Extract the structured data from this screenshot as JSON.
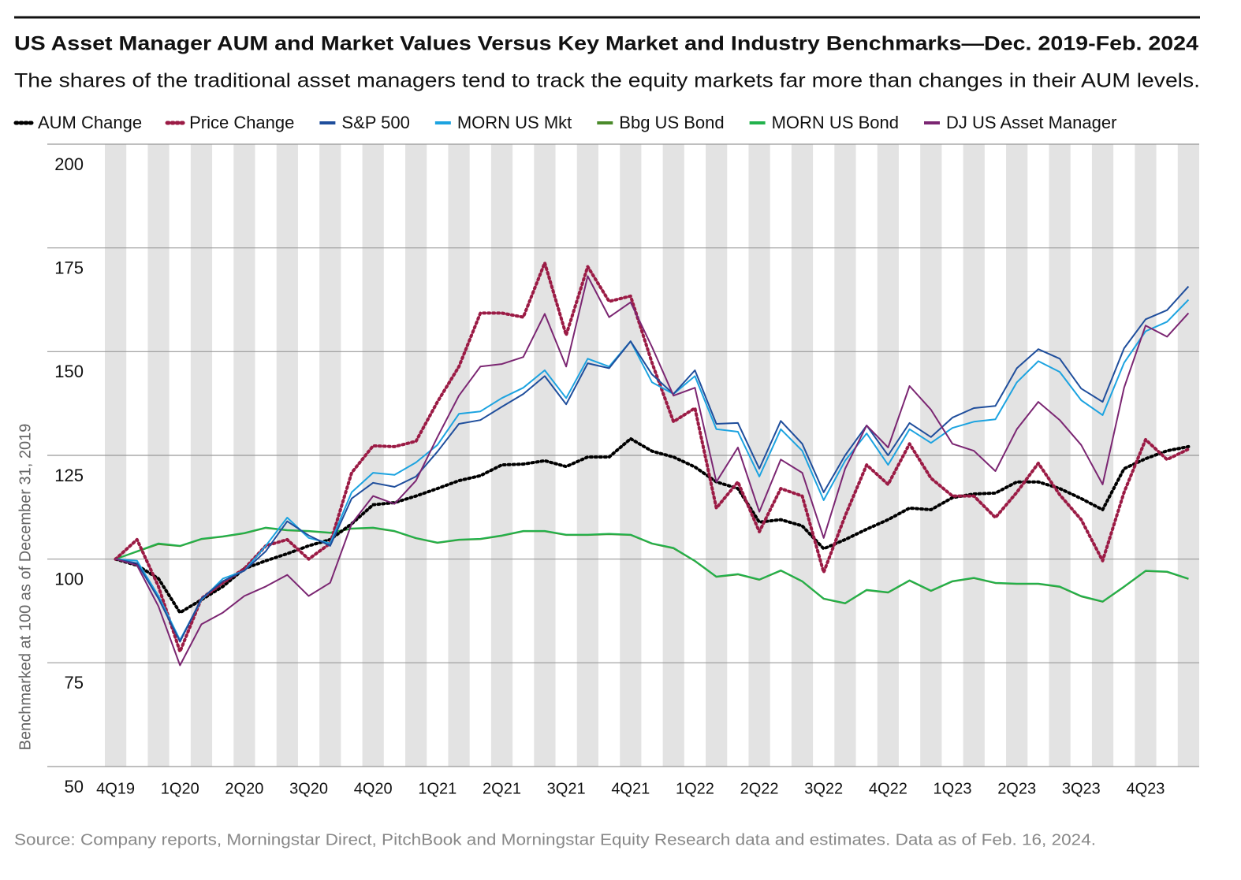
{
  "chart_data": {
    "type": "line",
    "title": "US Asset Manager AUM and Market Values Versus Key Market and Industry Benchmarks—Dec. 2019-Feb. 2024",
    "subtitle": "The shares of the traditional asset managers tend to track the equity markets far more than changes in their AUM levels.",
    "y_label": "Benchmarked at 100 as of December 31, 2019",
    "source": "Source: Company reports, Morningstar Direct, PitchBook and Morningstar Equity Research data and estimates. Data as of Feb. 16, 2024.",
    "categories": [
      "4Q19",
      null,
      null,
      "1Q20",
      null,
      null,
      "2Q20",
      null,
      null,
      "3Q20",
      null,
      null,
      "4Q20",
      null,
      null,
      "1Q21",
      null,
      null,
      "2Q21",
      null,
      null,
      "3Q21",
      null,
      null,
      "4Q21",
      null,
      null,
      "1Q22",
      null,
      null,
      "2Q22",
      null,
      null,
      "3Q22",
      null,
      null,
      "4Q22",
      null,
      null,
      "1Q23",
      null,
      null,
      "2Q23",
      null,
      null,
      "3Q23",
      null,
      null,
      "4Q23",
      null,
      null
    ],
    "ylim": [
      50,
      200
    ],
    "yticks": [
      50,
      75,
      100,
      125,
      150,
      175,
      200
    ],
    "grid": true,
    "stripes": true,
    "series": [
      {
        "name": "AUM Change",
        "color": "#000000",
        "line_style": "dotted",
        "values": [
          100,
          98.5,
          95.3,
          87.1,
          90.2,
          93.4,
          97.7,
          99.6,
          101.3,
          103.2,
          104.7,
          108.5,
          113.1,
          113.6,
          115.2,
          117,
          118.9,
          120.1,
          122.7,
          122.9,
          123.7,
          122.3,
          124.6,
          124.6,
          129,
          126,
          124.6,
          122.2,
          118.6,
          117,
          108.9,
          109.5,
          108,
          102.5,
          104.7,
          107.2,
          109.5,
          112.3,
          111.9,
          114.8,
          115.7,
          115.9,
          118.6,
          118.6,
          117,
          114.6,
          111.9,
          121.8,
          124.2,
          126.1,
          127.1
        ]
      },
      {
        "name": "Price Change",
        "color": "#9b1b45",
        "line_style": "dotted",
        "values": [
          100,
          104.7,
          93.4,
          77.7,
          90.5,
          94.3,
          97.7,
          103.2,
          104.7,
          100,
          103.8,
          120.8,
          127.3,
          127.1,
          128.4,
          137.9,
          146.4,
          159.3,
          159.3,
          158.3,
          171.4,
          154,
          170.5,
          162.1,
          163.4,
          147.3,
          133.1,
          136.4,
          112.3,
          118.6,
          106.6,
          117,
          115.2,
          96.8,
          110.4,
          122.7,
          118,
          127.8,
          119.5,
          115.2,
          115.2,
          110,
          116.1,
          123.1,
          115.5,
          109.5,
          99.6,
          116.1,
          128.8,
          124,
          126.5
        ]
      },
      {
        "name": "S&P 500",
        "color": "#1f4e9c",
        "line_style": "solid",
        "values": [
          100,
          99,
          90.5,
          80.1,
          90.5,
          94.7,
          97.2,
          101.9,
          109.1,
          105.7,
          103.2,
          114.6,
          118.4,
          117.4,
          119.9,
          125.9,
          132.6,
          133.5,
          136.7,
          139.8,
          144.1,
          137.3,
          147.2,
          146,
          152.5,
          144.5,
          139.8,
          145.5,
          132.6,
          132.8,
          121.8,
          133.3,
          127.8,
          116.1,
          125,
          132.2,
          125,
          132.8,
          129.4,
          134.1,
          136.4,
          136.9,
          146,
          150.6,
          148.3,
          141.1,
          137.9,
          150.8,
          157.8,
          160,
          165.7
        ]
      },
      {
        "name": "MORN US Mkt",
        "color": "#1ca3e0",
        "line_style": "solid",
        "values": [
          100,
          99.6,
          91.1,
          80.5,
          90.2,
          95.3,
          97.2,
          103.2,
          110,
          105.1,
          103.8,
          116.1,
          120.8,
          120.3,
          123.3,
          127.5,
          135,
          135.6,
          138.8,
          141.3,
          145.5,
          138.8,
          148.3,
          146.4,
          152.5,
          142.6,
          139.8,
          144.1,
          131.3,
          130.7,
          119.9,
          131.3,
          126.1,
          114.2,
          123.7,
          130.3,
          122.7,
          131.3,
          128,
          131.6,
          133.1,
          133.7,
          142.6,
          147.7,
          145.1,
          138.3,
          134.7,
          147.3,
          154.9,
          157.2,
          162.5
        ]
      },
      {
        "name": "Bbg US Bond",
        "color": "#4a8a2a",
        "line_style": "solid",
        "values": [
          100,
          101.8,
          103.6,
          103.1,
          104.8,
          105.4,
          106.2,
          107.5,
          106.9,
          106.7,
          106.3,
          107.3,
          107.5,
          106.7,
          105,
          103.9,
          104.6,
          104.8,
          105.6,
          106.7,
          106.7,
          105.8,
          105.8,
          106,
          105.8,
          103.7,
          102.6,
          99.5,
          95.7,
          96.3,
          95,
          97.2,
          94.6,
          90.4,
          89.3,
          92.5,
          91.9,
          94.8,
          92.3,
          94.6,
          95.4,
          94.2,
          94,
          94,
          93.3,
          91,
          89.7,
          93.3,
          97.1,
          96.9,
          95.2
        ]
      },
      {
        "name": "MORN US Bond",
        "color": "#22b24c",
        "line_style": "solid",
        "values": [
          100,
          101.9,
          103.8,
          103.2,
          104.9,
          105.5,
          106.3,
          107.6,
          107,
          106.8,
          106.4,
          107.4,
          107.6,
          106.8,
          105.1,
          104,
          104.7,
          104.9,
          105.7,
          106.8,
          106.8,
          105.9,
          105.9,
          106.1,
          105.9,
          103.8,
          102.7,
          99.6,
          95.8,
          96.4,
          95.1,
          97.3,
          94.7,
          90.5,
          89.4,
          92.6,
          92,
          94.9,
          92.4,
          94.7,
          95.5,
          94.3,
          94.1,
          94.1,
          93.4,
          91.1,
          89.8,
          93.4,
          97.2,
          97,
          95.3
        ]
      },
      {
        "name": "DJ US Asset Manager",
        "color": "#7b2672",
        "line_style": "solid",
        "values": [
          100,
          98.5,
          88.6,
          74.4,
          84.3,
          87.1,
          91.1,
          93.4,
          96.2,
          91.1,
          94.3,
          108.5,
          115.2,
          113.3,
          118.9,
          129.4,
          139.4,
          146.4,
          147,
          148.7,
          159.1,
          146.4,
          168.2,
          158.3,
          161.9,
          151.1,
          139.4,
          141.3,
          118.6,
          126.9,
          111.4,
          124,
          120.8,
          105.1,
          121.8,
          132.2,
          126.9,
          141.7,
          136,
          127.8,
          126.1,
          121.2,
          131.3,
          137.9,
          133.5,
          127.5,
          118,
          141.3,
          156.3,
          153.6,
          159.3
        ]
      }
    ]
  }
}
